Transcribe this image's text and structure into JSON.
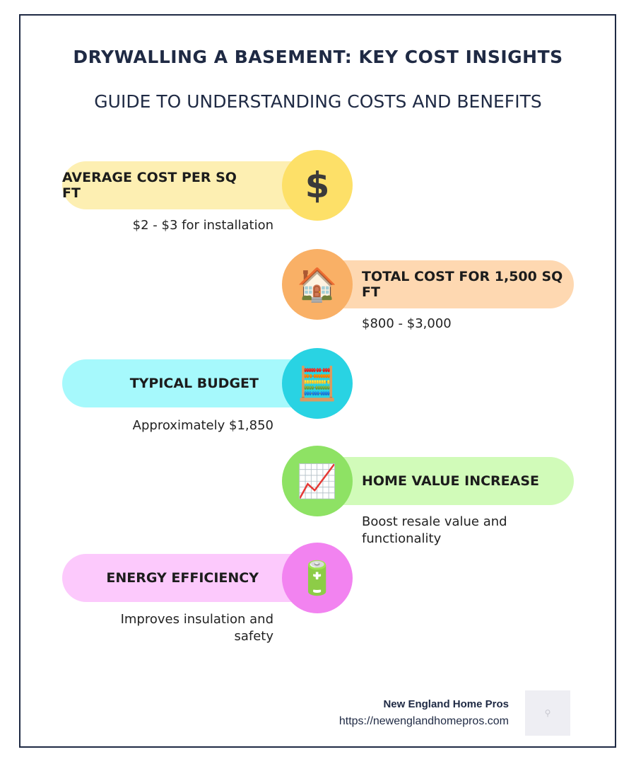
{
  "title": "DRYWALLING A BASEMENT: KEY COST INSIGHTS",
  "subtitle": "GUIDE TO UNDERSTANDING COSTS AND BENEFITS",
  "items": [
    {
      "label": "AVERAGE COST PER SQ FT",
      "description": "$2 - $3 for installation",
      "icon": "dollar-sign-icon",
      "glyph": "$",
      "pill_color": "#fdefb2",
      "circle_color": "#fde068",
      "side": "left"
    },
    {
      "label": "TOTAL COST FOR 1,500 SQ FT",
      "description": "$800 - $3,000",
      "icon": "house-icon",
      "glyph": "🏠",
      "pill_color": "#fed8b1",
      "circle_color": "#f9b066",
      "side": "right"
    },
    {
      "label": "TYPICAL BUDGET",
      "description": "Approximately $1,850",
      "icon": "abacus-icon",
      "glyph": "🧮",
      "pill_color": "#a6f9fc",
      "circle_color": "#29d3e3",
      "side": "left"
    },
    {
      "label": "HOME VALUE INCREASE",
      "description": "Boost resale value and functionality",
      "icon": "chart-increasing-icon",
      "glyph": "📈",
      "pill_color": "#d1fbb9",
      "circle_color": "#8ee264",
      "side": "right"
    },
    {
      "label": "ENERGY EFFICIENCY",
      "description": "Improves insulation and safety",
      "icon": "battery-icon",
      "glyph": "🔋",
      "pill_color": "#fcc9fc",
      "circle_color": "#f283f0",
      "side": "left"
    }
  ],
  "footer": {
    "brand": "New England Home Pros",
    "url": "https://newenglandhomepros.com"
  }
}
